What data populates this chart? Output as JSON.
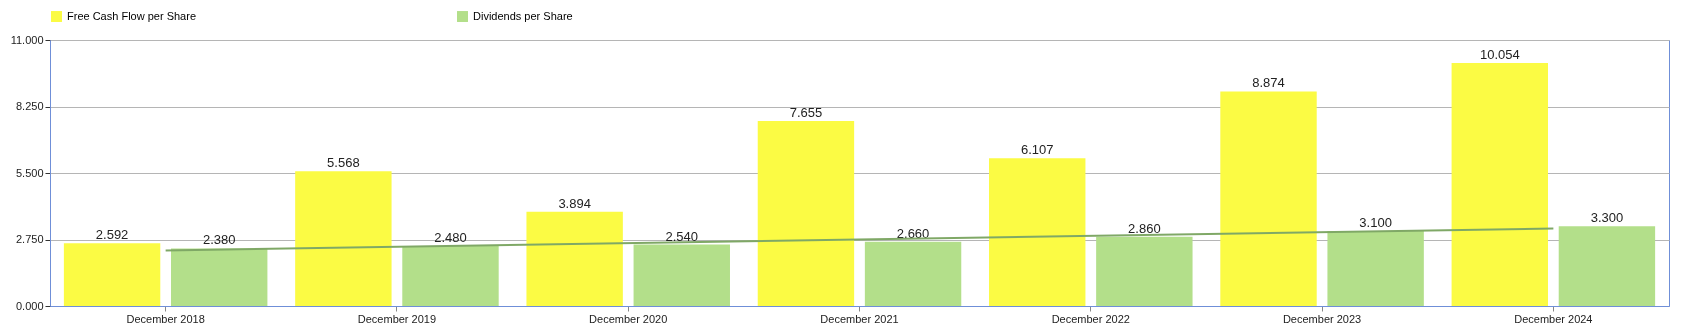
{
  "chart_data": {
    "type": "bar",
    "categories": [
      "December 2018",
      "December 2019",
      "December 2020",
      "December 2021",
      "December 2022",
      "December 2023",
      "December 2024"
    ],
    "series": [
      {
        "name": "Free Cash Flow per Share",
        "color": "#fbfb44",
        "values": [
          2.592,
          5.568,
          3.894,
          7.655,
          6.107,
          8.874,
          10.054
        ],
        "value_labels": [
          "2.592",
          "5.568",
          "3.894",
          "7.655",
          "6.107",
          "8.874",
          "10.054"
        ]
      },
      {
        "name": "Dividends per Share",
        "color": "#b3df8a",
        "values": [
          2.38,
          2.48,
          2.54,
          2.66,
          2.86,
          3.1,
          3.3
        ],
        "value_labels": [
          "2.380",
          "2.480",
          "2.540",
          "2.660",
          "2.860",
          "3.100",
          "3.300"
        ]
      },
      {
        "type": "line",
        "color": "#7fa866",
        "x": [
          "December 2018",
          "December 2024"
        ],
        "values": [
          2.3,
          3.2
        ]
      }
    ],
    "ylim": [
      0,
      11
    ],
    "yticks": [
      {
        "value": 0,
        "label": "0.000"
      },
      {
        "value": 2.75,
        "label": "2.750"
      },
      {
        "value": 5.5,
        "label": "5.500"
      },
      {
        "value": 8.25,
        "label": "8.250"
      },
      {
        "value": 11,
        "label": "11.000"
      }
    ],
    "grid": "y",
    "legend": "top"
  }
}
